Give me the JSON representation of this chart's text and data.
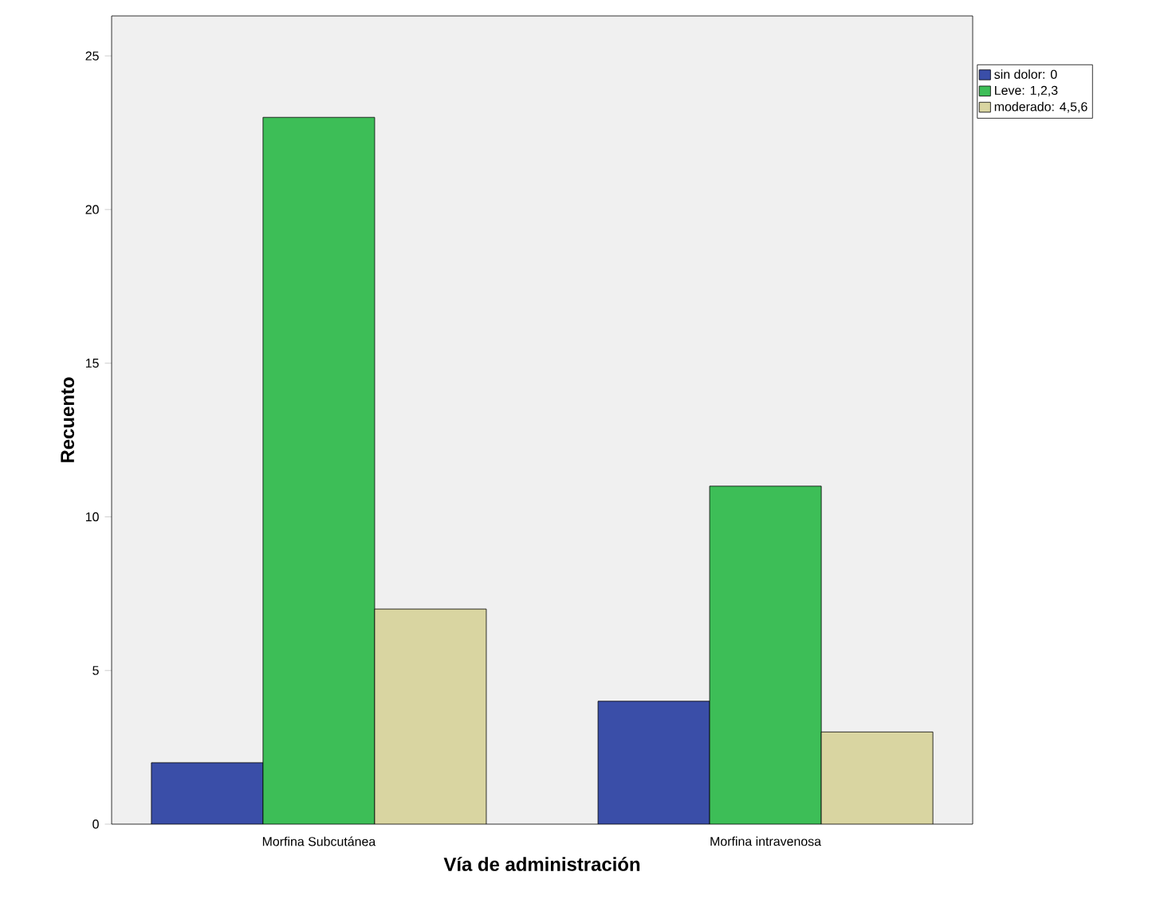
{
  "chart_data": {
    "type": "bar",
    "xlabel": "Vía de administración",
    "ylabel": "Recuento",
    "categories": [
      "Morfina Subcutánea",
      "Morfina intravenosa"
    ],
    "series": [
      {
        "name": "sin dolor: 0",
        "color": "#3a4ea8",
        "values": [
          2,
          4
        ]
      },
      {
        "name": "Leve: 1,2,3",
        "color": "#3dbe57",
        "values": [
          23,
          11
        ]
      },
      {
        "name": "moderado: 4,5,6",
        "color": "#d9d5a1",
        "values": [
          7,
          3
        ]
      }
    ],
    "ylim": [
      0,
      26.3
    ],
    "yticks": [
      0,
      5,
      10,
      15,
      20,
      25
    ],
    "legend": "top right",
    "grid": false
  }
}
